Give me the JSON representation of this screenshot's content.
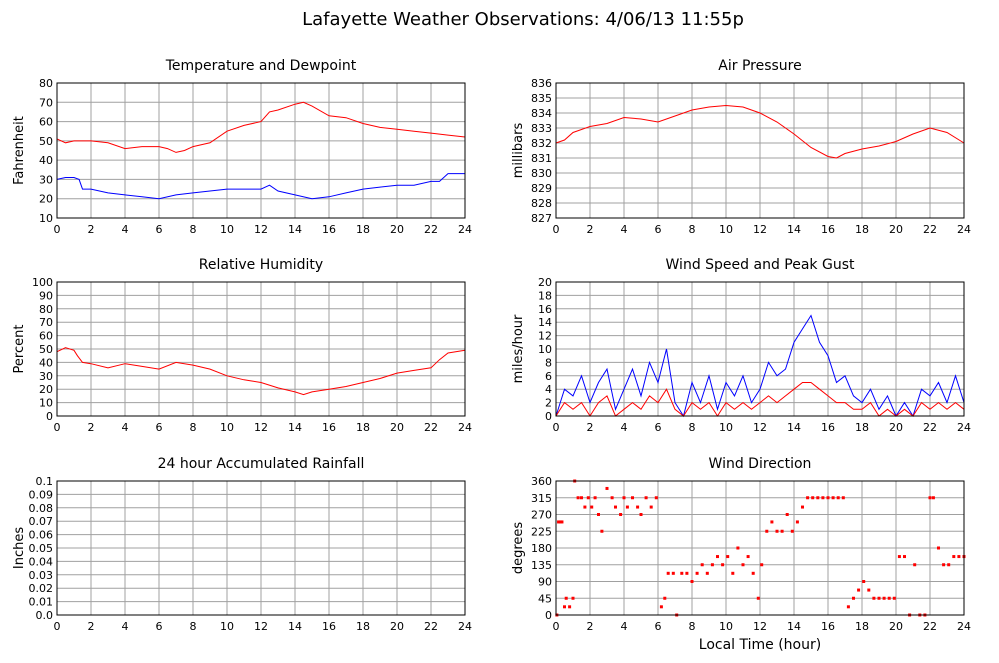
{
  "page": {
    "title": "Lafayette Weather Observations: 4/06/13 11:55p",
    "x_axis_label": "Local Time (hour)"
  },
  "colors": {
    "primary": "#ff0000",
    "secondary": "#0000ff",
    "grid": "#a0a0a0",
    "frame": "#000000"
  },
  "chart_data": [
    {
      "id": "temp",
      "type": "line",
      "title": "Temperature and Dewpoint",
      "xlabel": "",
      "ylabel": "Fahrenheit",
      "xlim": [
        0,
        24
      ],
      "ylim": [
        10,
        80
      ],
      "xticks": [
        0,
        2,
        4,
        6,
        8,
        10,
        12,
        14,
        16,
        18,
        20,
        22,
        24
      ],
      "yticks": [
        "10",
        "20",
        "30",
        "40",
        "50",
        "60",
        "70",
        "80"
      ],
      "series": [
        {
          "color": "#ff0000",
          "x": [
            0,
            0.5,
            1,
            2,
            3,
            4,
            5,
            6,
            6.5,
            7,
            7.5,
            8,
            9,
            10,
            11,
            12,
            12.5,
            13,
            14,
            14.5,
            15,
            16,
            17,
            18,
            19,
            20,
            21,
            22,
            23,
            24
          ],
          "y": [
            51,
            49,
            50,
            50,
            49,
            46,
            47,
            47,
            46,
            44,
            45,
            47,
            49,
            55,
            58,
            60,
            65,
            66,
            69,
            70,
            68,
            63,
            62,
            59,
            57,
            56,
            55,
            54,
            53,
            52
          ]
        },
        {
          "color": "#0000ff",
          "x": [
            0,
            0.5,
            1,
            1.3,
            1.5,
            2,
            3,
            4,
            5,
            6,
            7,
            8,
            9,
            10,
            11,
            12,
            12.5,
            13,
            14,
            15,
            16,
            17,
            18,
            19,
            20,
            21,
            22,
            22.5,
            23,
            24
          ],
          "y": [
            30,
            31,
            31,
            30,
            25,
            25,
            23,
            22,
            21,
            20,
            22,
            23,
            24,
            25,
            25,
            25,
            27,
            24,
            22,
            20,
            21,
            23,
            25,
            26,
            27,
            27,
            29,
            29,
            33,
            33
          ]
        }
      ]
    },
    {
      "id": "pressure",
      "type": "line",
      "title": "Air Pressure",
      "xlabel": "",
      "ylabel": "millibars",
      "xlim": [
        0,
        24
      ],
      "ylim": [
        827,
        836
      ],
      "xticks": [
        0,
        2,
        4,
        6,
        8,
        10,
        12,
        14,
        16,
        18,
        20,
        22,
        24
      ],
      "yticks": [
        "827",
        "828",
        "829",
        "830",
        "831",
        "832",
        "833",
        "834",
        "835",
        "836"
      ],
      "series": [
        {
          "color": "#ff0000",
          "x": [
            0,
            0.5,
            1,
            2,
            3,
            4,
            5,
            6,
            7,
            8,
            9,
            10,
            11,
            12,
            13,
            14,
            15,
            16,
            16.5,
            17,
            18,
            19,
            20,
            21,
            22,
            23,
            24
          ],
          "y": [
            832.0,
            832.2,
            832.7,
            833.1,
            833.3,
            833.7,
            833.6,
            833.4,
            833.8,
            834.2,
            834.4,
            834.5,
            834.4,
            834.0,
            833.4,
            832.6,
            831.7,
            831.1,
            831.0,
            831.3,
            831.6,
            831.8,
            832.1,
            832.6,
            833.0,
            832.7,
            832.0
          ]
        }
      ]
    },
    {
      "id": "humidity",
      "type": "line",
      "title": "Relative Humidity",
      "xlabel": "",
      "ylabel": "Percent",
      "xlim": [
        0,
        24
      ],
      "ylim": [
        0,
        100
      ],
      "xticks": [
        0,
        2,
        4,
        6,
        8,
        10,
        12,
        14,
        16,
        18,
        20,
        22,
        24
      ],
      "yticks": [
        "0",
        "10",
        "20",
        "30",
        "40",
        "50",
        "60",
        "70",
        "80",
        "90",
        "100"
      ],
      "series": [
        {
          "color": "#ff0000",
          "x": [
            0,
            0.5,
            1,
            1.2,
            1.5,
            2,
            3,
            4,
            5,
            6,
            7,
            8,
            9,
            10,
            11,
            12,
            13,
            14,
            14.5,
            15,
            16,
            17,
            18,
            19,
            20,
            21,
            22,
            22.5,
            23,
            24
          ],
          "y": [
            48,
            51,
            49,
            45,
            40,
            39,
            36,
            39,
            37,
            35,
            40,
            38,
            35,
            30,
            27,
            25,
            21,
            18,
            16,
            18,
            20,
            22,
            25,
            28,
            32,
            34,
            36,
            42,
            47,
            49
          ]
        }
      ]
    },
    {
      "id": "wind",
      "type": "line",
      "title": "Wind Speed and Peak Gust",
      "xlabel": "",
      "ylabel": "miles/hour",
      "xlim": [
        0,
        24
      ],
      "ylim": [
        0,
        20
      ],
      "xticks": [
        0,
        2,
        4,
        6,
        8,
        10,
        12,
        14,
        16,
        18,
        20,
        22,
        24
      ],
      "yticks": [
        "0",
        "2",
        "4",
        "6",
        "8",
        "10",
        "12",
        "14",
        "16",
        "18",
        "20"
      ],
      "series": [
        {
          "color": "#0000ff",
          "x": [
            0,
            0.5,
            1,
            1.5,
            2,
            2.5,
            3,
            3.5,
            4,
            4.5,
            5,
            5.5,
            6,
            6.5,
            7,
            7.5,
            8,
            8.5,
            9,
            9.5,
            10,
            10.5,
            11,
            11.5,
            12,
            12.5,
            13,
            13.5,
            14,
            14.5,
            15,
            15.5,
            16,
            16.5,
            17,
            17.5,
            18,
            18.5,
            19,
            19.5,
            20,
            20.5,
            21,
            21.5,
            22,
            22.5,
            23,
            23.5,
            24
          ],
          "y": [
            0,
            4,
            3,
            6,
            2,
            5,
            7,
            1,
            4,
            7,
            3,
            8,
            5,
            10,
            2,
            0,
            5,
            2,
            6,
            1,
            5,
            3,
            6,
            2,
            4,
            8,
            6,
            7,
            11,
            13,
            15,
            11,
            9,
            5,
            6,
            3,
            2,
            4,
            1,
            3,
            0,
            2,
            0,
            4,
            3,
            5,
            2,
            6,
            2
          ]
        },
        {
          "color": "#ff0000",
          "x": [
            0,
            0.5,
            1,
            1.5,
            2,
            2.5,
            3,
            3.5,
            4,
            4.5,
            5,
            5.5,
            6,
            6.5,
            7,
            7.5,
            8,
            8.5,
            9,
            9.5,
            10,
            10.5,
            11,
            11.5,
            12,
            12.5,
            13,
            13.5,
            14,
            14.5,
            15,
            15.5,
            16,
            16.5,
            17,
            17.5,
            18,
            18.5,
            19,
            19.5,
            20,
            20.5,
            21,
            21.5,
            22,
            22.5,
            23,
            23.5,
            24
          ],
          "y": [
            0,
            2,
            1,
            2,
            0,
            2,
            3,
            0,
            1,
            2,
            1,
            3,
            2,
            4,
            1,
            0,
            2,
            1,
            2,
            0,
            2,
            1,
            2,
            1,
            2,
            3,
            2,
            3,
            4,
            5,
            5,
            4,
            3,
            2,
            2,
            1,
            1,
            2,
            0,
            1,
            0,
            1,
            0,
            2,
            1,
            2,
            1,
            2,
            1
          ]
        }
      ]
    },
    {
      "id": "rain",
      "type": "line",
      "title": "24 hour Accumulated Rainfall",
      "xlabel": "",
      "ylabel": "Inches",
      "xlim": [
        0,
        24
      ],
      "ylim": [
        0,
        0.1
      ],
      "xticks": [
        0,
        2,
        4,
        6,
        8,
        10,
        12,
        14,
        16,
        18,
        20,
        22,
        24
      ],
      "yticks": [
        "0.0",
        "0.01",
        "0.02",
        "0.03",
        "0.04",
        "0.05",
        "0.06",
        "0.07",
        "0.08",
        "0.09",
        "0.1"
      ],
      "series": [
        {
          "color": "#ff0000",
          "x": [
            0,
            24
          ],
          "y": [
            0,
            0
          ]
        }
      ]
    },
    {
      "id": "direction",
      "type": "scatter",
      "title": "Wind Direction",
      "xlabel": "Local Time (hour)",
      "ylabel": "degrees",
      "xlim": [
        0,
        24
      ],
      "ylim": [
        0,
        360
      ],
      "xticks": [
        0,
        2,
        4,
        6,
        8,
        10,
        12,
        14,
        16,
        18,
        20,
        22,
        24
      ],
      "yticks": [
        "0",
        "45",
        "90",
        "135",
        "180",
        "225",
        "270",
        "315",
        "360"
      ],
      "series": [
        {
          "color": "#ff0000",
          "x": [
            0.05,
            0.15,
            0.25,
            0.35,
            0.5,
            0.6,
            0.8,
            1.0,
            1.1,
            1.3,
            1.5,
            1.7,
            1.9,
            2.1,
            2.3,
            2.5,
            2.7,
            3.0,
            3.3,
            3.5,
            3.8,
            4.0,
            4.2,
            4.5,
            4.8,
            5.0,
            5.3,
            5.6,
            5.9,
            6.2,
            6.4,
            6.6,
            6.9,
            7.1,
            7.4,
            7.7,
            8.0,
            8.3,
            8.6,
            8.9,
            9.2,
            9.5,
            9.8,
            10.1,
            10.4,
            10.7,
            11.0,
            11.3,
            11.6,
            11.9,
            12.1,
            12.4,
            12.7,
            13.0,
            13.3,
            13.6,
            13.9,
            14.2,
            14.5,
            14.8,
            15.1,
            15.4,
            15.7,
            16.0,
            16.3,
            16.6,
            16.9,
            17.2,
            17.5,
            17.8,
            18.1,
            18.4,
            18.7,
            19.0,
            19.3,
            19.6,
            19.9,
            20.2,
            20.5,
            20.8,
            21.1,
            21.4,
            21.7,
            22.0,
            22.2,
            22.5,
            22.8,
            23.1,
            23.4,
            23.7,
            24.0
          ],
          "y": [
            0,
            250,
            250,
            250,
            22,
            45,
            22,
            45,
            360,
            315,
            315,
            290,
            315,
            290,
            315,
            270,
            225,
            340,
            315,
            290,
            270,
            315,
            290,
            315,
            290,
            270,
            315,
            290,
            315,
            22,
            45,
            112,
            112,
            0,
            112,
            112,
            90,
            112,
            135,
            112,
            135,
            157,
            135,
            157,
            112,
            180,
            135,
            157,
            112,
            45,
            135,
            225,
            250,
            225,
            225,
            270,
            225,
            250,
            290,
            315,
            315,
            315,
            315,
            315,
            315,
            315,
            315,
            22,
            45,
            67,
            90,
            67,
            45,
            45,
            45,
            45,
            45,
            157,
            157,
            0,
            135,
            0,
            0,
            315,
            315,
            180,
            135,
            135,
            157,
            157,
            157
          ]
        }
      ]
    }
  ]
}
